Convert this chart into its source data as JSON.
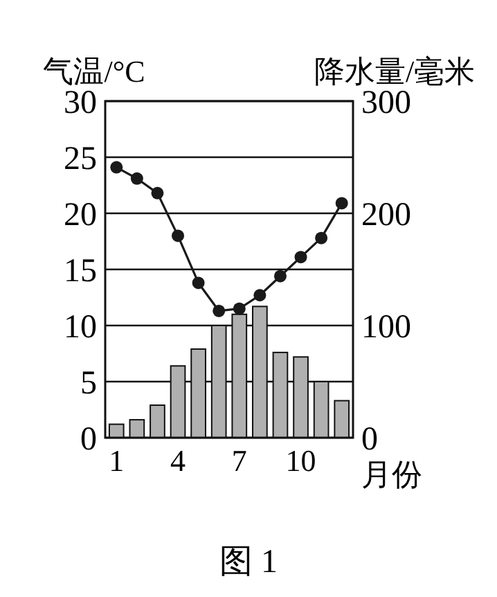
{
  "chart_data": {
    "type": "bar",
    "categories": [
      "1",
      null,
      null,
      "4",
      null,
      null,
      "7",
      null,
      null,
      "10",
      null,
      null
    ],
    "xlabel": "月份",
    "ylabel": "气温/°C",
    "y2label": "降水量/毫米",
    "annotations": [
      "图 1"
    ],
    "series": [
      {
        "axis": "y2",
        "color": "#b0b0b0",
        "values": [
          12,
          16,
          29,
          64,
          79,
          100,
          110,
          117,
          76,
          72,
          50,
          33
        ]
      },
      {
        "type": "line",
        "axis": "y",
        "color": "#1a1a1a",
        "marker": "circle",
        "line_style": "solid",
        "values": [
          24.1,
          23.1,
          21.8,
          18.0,
          13.8,
          11.3,
          11.5,
          12.7,
          14.4,
          16.1,
          17.8,
          20.9
        ]
      }
    ],
    "ylim": [
      0,
      30
    ],
    "yticks": [
      0,
      5,
      10,
      15,
      20,
      25,
      30
    ],
    "y2lim": [
      0,
      300
    ],
    "y2ticks": [
      0,
      100,
      200,
      300
    ],
    "grid": "y"
  }
}
